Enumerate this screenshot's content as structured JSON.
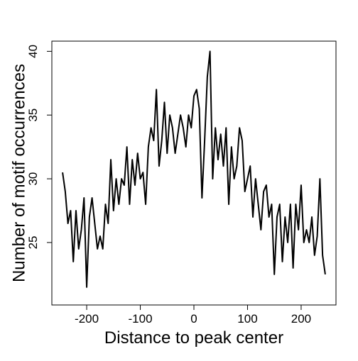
{
  "chart_data": {
    "type": "line",
    "x_label": "Distance to peak center",
    "y_label": "Number of motif occurrences",
    "x": [
      -245,
      -240,
      -235,
      -230,
      -225,
      -220,
      -215,
      -210,
      -205,
      -200,
      -195,
      -190,
      -185,
      -180,
      -175,
      -170,
      -165,
      -160,
      -155,
      -150,
      -145,
      -140,
      -135,
      -130,
      -125,
      -120,
      -115,
      -110,
      -105,
      -100,
      -95,
      -90,
      -85,
      -80,
      -75,
      -70,
      -65,
      -60,
      -55,
      -50,
      -45,
      -40,
      -35,
      -30,
      -25,
      -20,
      -15,
      -10,
      -5,
      0,
      5,
      10,
      15,
      20,
      25,
      30,
      35,
      40,
      45,
      50,
      55,
      60,
      65,
      70,
      75,
      80,
      85,
      90,
      95,
      100,
      105,
      110,
      115,
      120,
      125,
      130,
      135,
      140,
      145,
      150,
      155,
      160,
      165,
      170,
      175,
      180,
      185,
      190,
      195,
      200,
      205,
      210,
      215,
      220,
      225,
      230,
      235,
      240,
      245
    ],
    "series": [
      {
        "name": "occurrences",
        "color": "#000000",
        "values": [
          30.5,
          29,
          26.5,
          27.5,
          23.5,
          27.5,
          24.5,
          26,
          28.5,
          21.5,
          27,
          28.5,
          26.5,
          24.5,
          25.5,
          24.5,
          28,
          26.5,
          31.5,
          27.5,
          30,
          28,
          30,
          29.5,
          32.5,
          28,
          31.5,
          29.5,
          32,
          30,
          30.5,
          28,
          32.5,
          34,
          33,
          37,
          31,
          33,
          36,
          32,
          35,
          34,
          32,
          33.5,
          35,
          34,
          32.5,
          35,
          34,
          36.5,
          37,
          35.5,
          28.5,
          33,
          38,
          40,
          30,
          34,
          31.5,
          33.5,
          31,
          34,
          28,
          32.5,
          30,
          31,
          34,
          33,
          29,
          30,
          31,
          27,
          30,
          28,
          26,
          29,
          29.5,
          27,
          28,
          22.5,
          27,
          28,
          23.5,
          27,
          25,
          28,
          23,
          28,
          26,
          29.5,
          25,
          26,
          25,
          27,
          24,
          25.5,
          30,
          24,
          22.5
        ]
      }
    ],
    "xlim": [
      -265,
      265
    ],
    "ylim": [
      20.1,
      40.8
    ],
    "xticks": [
      -200,
      -100,
      0,
      100,
      200
    ],
    "yticks": [
      25,
      30,
      35,
      40
    ]
  }
}
